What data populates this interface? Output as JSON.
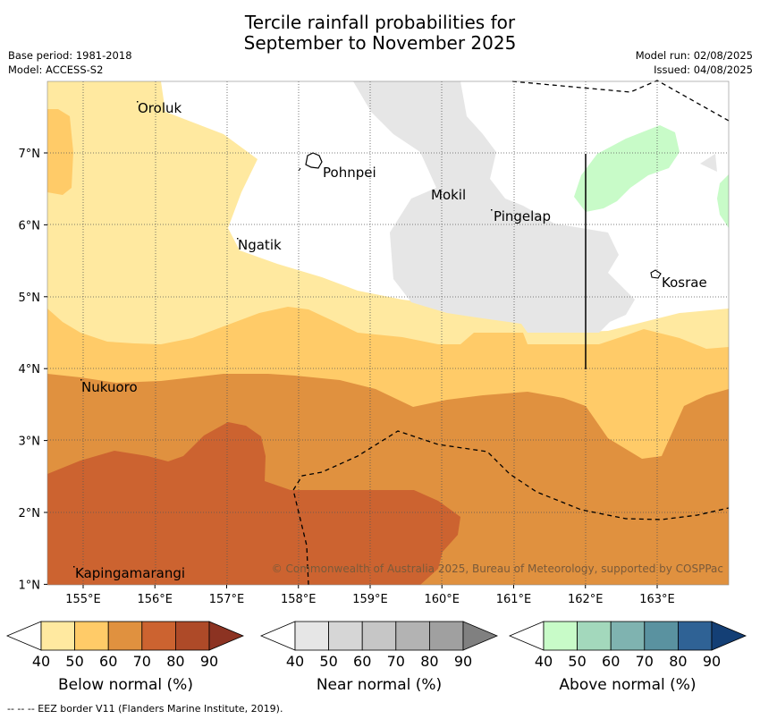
{
  "header": {
    "title_line1": "Tercile rainfall probabilities for",
    "title_line2": "September to November 2025",
    "base_period": "Base period: 1981-2018",
    "model": "Model: ACCESS-S2",
    "model_run": "Model run: 02/08/2025",
    "issued": "Issued: 04/08/2025"
  },
  "map": {
    "lon_ticks": [
      "155°E",
      "156°E",
      "157°E",
      "158°E",
      "159°E",
      "160°E",
      "161°E",
      "162°E",
      "163°E"
    ],
    "lat_ticks": [
      "7°N",
      "6°N",
      "5°N",
      "4°N",
      "3°N",
      "2°N",
      "1°N"
    ],
    "places": [
      "Oroluk",
      "Pohnpei",
      "Mokil",
      "Pingelap",
      "Ngatik",
      "Kosrae",
      "Nukuoro",
      "Kapingamarangi"
    ],
    "copyright": "© Commonwealth of Australia 2025, Bureau of Meteorology, supported by COSPPac",
    "grid": true
  },
  "colorbars": [
    {
      "label": "Below normal (%)",
      "ticks": [
        "40",
        "50",
        "60",
        "70",
        "80",
        "90"
      ],
      "colors": [
        "#ffffff",
        "#ffe9a0",
        "#ffcb68",
        "#e0913f",
        "#cc6330",
        "#ae4a28",
        "#8c3322"
      ]
    },
    {
      "label": "Near normal (%)",
      "ticks": [
        "40",
        "50",
        "60",
        "70",
        "80",
        "90"
      ],
      "colors": [
        "#ffffff",
        "#e6e6e6",
        "#d6d6d6",
        "#c6c6c6",
        "#b3b3b3",
        "#a0a0a0",
        "#808080"
      ]
    },
    {
      "label": "Above normal (%)",
      "ticks": [
        "40",
        "50",
        "60",
        "70",
        "80",
        "90"
      ],
      "colors": [
        "#ffffff",
        "#c8fbc8",
        "#a3d8bc",
        "#7fb3b0",
        "#5a92a0",
        "#2f6295",
        "#143f75"
      ]
    }
  ],
  "footer": "--  --  -- EEZ border V11 (Flanders Marine Institute, 2019)."
}
